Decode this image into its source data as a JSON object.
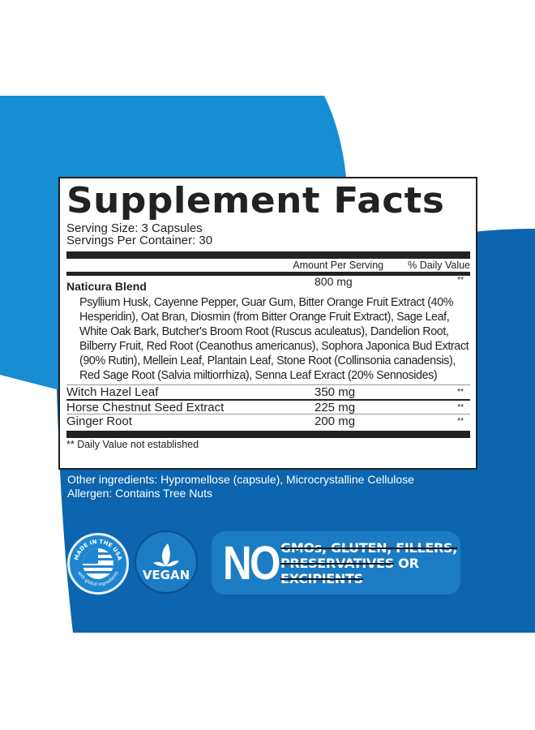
{
  "colors": {
    "light_blue": "#178dd3",
    "dark_blue": "#0c65ae",
    "badge_blue": "#1b7cc4"
  },
  "facts": {
    "title": "Supplement Facts",
    "serving_size": "Serving Size: 3 Capsules",
    "servings_per_container": "Servings Per Container: 30",
    "col_amount": "Amount Per Serving",
    "col_dv": "% Daily Value",
    "blend": {
      "name": "Naticura Blend",
      "amount": "800 mg",
      "dv": "**"
    },
    "blend_ingredients": "Psyllium Husk, Cayenne Pepper, Guar Gum, Bitter Orange Fruit Extract (40% Hesperidin), Oat Bran, Diosmin (from Bitter Orange Fruit Extract), Sage Leaf, White Oak Bark, Butcher's Broom Root (Ruscus aculeatus), Dandelion Root, Bilberry Fruit, Red Root (Ceanothus americanus), Sophora Japonica Bud Extract (90% Rutin), Mellein Leaf, Plantain Leaf, Stone Root (Collinsonia canadensis), Red Sage Root (Salvia miltiorrhiza), Senna Leaf Exract (20% Sennosides)",
    "items": [
      {
        "name": "Witch Hazel Leaf",
        "amount": "350 mg",
        "dv": "**"
      },
      {
        "name": "Horse Chestnut Seed Extract",
        "amount": "225 mg",
        "dv": "**"
      },
      {
        "name": "Ginger Root",
        "amount": "200 mg",
        "dv": "**"
      }
    ],
    "footnote": "** Daily Value not established"
  },
  "other_ingredients": "Other ingredients: Hypromellose (capsule), Microcrystalline Cellulose",
  "allergen": "Allergen: Contains Tree Nuts",
  "badges": {
    "usa": {
      "top": "MADE IN THE USA",
      "bottom": "with global ingredients",
      "icon": "usa-flag-icon"
    },
    "vegan": {
      "label": "VEGAN",
      "icon": "leaf-icon"
    },
    "no": {
      "word": "NO",
      "line1": "GMOs, GLUTEN, FILLERS,",
      "line2a": "PRESERVATIVES",
      "line2b": " OR",
      "line3": "EXCIPIENTS"
    }
  }
}
